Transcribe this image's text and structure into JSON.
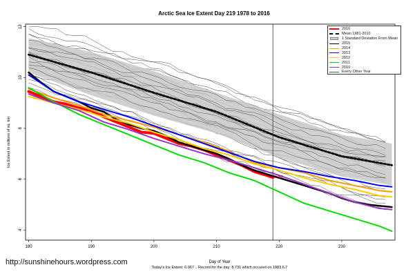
{
  "chart_data": {
    "type": "line",
    "title": "Arctic Sea Ice Extent Day 219 1978 to 2016",
    "xlabel": "Day of Year",
    "ylabel": "Ice Extent in millions of sq. km",
    "xlim": [
      179.5,
      238.5
    ],
    "ylim": [
      3.6,
      12.1
    ],
    "x_ticks": [
      180,
      190,
      200,
      210,
      220,
      230
    ],
    "y_ticks": [
      4,
      6,
      8,
      10,
      12
    ],
    "vline_day": 219,
    "point_label": "6.067",
    "legend_position": "top-right",
    "footer": "Today's Ice Extent: 6.067 .. Record for the day: 8.731 which occured on 1983.6.7",
    "mean_band": {
      "x": [
        180,
        190,
        200,
        210,
        220,
        230,
        238
      ],
      "mean": [
        10.9,
        10.2,
        9.4,
        8.65,
        7.65,
        6.9,
        6.55
      ],
      "lower": [
        10.2,
        9.3,
        8.5,
        7.8,
        6.85,
        6.1,
        5.75
      ],
      "upper": [
        11.55,
        11.0,
        10.25,
        9.4,
        8.55,
        7.75,
        7.4
      ]
    },
    "background_years": {
      "x": [
        180,
        190,
        200,
        210,
        220,
        230,
        238
      ],
      "top": [
        12.0,
        11.4,
        10.7,
        9.85,
        8.9,
        8.1,
        7.6
      ],
      "bottom": [
        9.6,
        8.9,
        7.95,
        7.0,
        6.1,
        5.3,
        4.85
      ],
      "count": 19
    },
    "series": [
      {
        "name": "2016",
        "color": "#ff0000",
        "width": 4,
        "x": [
          180,
          182,
          184,
          186,
          188,
          190,
          192,
          194,
          196,
          198,
          200,
          202,
          204,
          206,
          208,
          210,
          212,
          214,
          216,
          218,
          219
        ],
        "y": [
          9.45,
          9.25,
          9.05,
          8.95,
          8.8,
          8.7,
          8.45,
          8.25,
          8.05,
          7.85,
          7.8,
          7.6,
          7.4,
          7.3,
          7.15,
          6.95,
          6.75,
          6.55,
          6.3,
          6.15,
          6.067
        ]
      },
      {
        "name": "Mean 1981-2010",
        "color": "#111111",
        "dash": true,
        "width": 3,
        "x": [
          180,
          190,
          200,
          210,
          220,
          230,
          238
        ],
        "y": [
          10.9,
          10.2,
          9.4,
          8.65,
          7.65,
          6.9,
          6.55
        ]
      },
      {
        "name": "2015",
        "color": "#000000",
        "width": 2.5,
        "x": [
          180,
          182,
          184,
          186,
          188,
          190,
          192,
          194,
          196,
          198,
          200,
          202,
          204,
          206,
          208,
          210,
          212,
          214,
          216,
          218,
          220,
          222,
          224,
          226,
          228,
          230,
          232,
          234,
          236,
          238
        ],
        "y": [
          10.2,
          9.8,
          9.45,
          9.25,
          9.05,
          8.8,
          8.65,
          8.35,
          8.15,
          8.0,
          7.9,
          7.7,
          7.45,
          7.3,
          7.15,
          7.0,
          6.8,
          6.55,
          6.35,
          6.2,
          6.05,
          5.9,
          5.75,
          5.6,
          5.45,
          5.25,
          5.1,
          5.0,
          4.95,
          4.9
        ]
      },
      {
        "name": "2014",
        "color": "#ff9900",
        "width": 2,
        "x": [
          180,
          184,
          188,
          192,
          196,
          200,
          204,
          208,
          212,
          216,
          220,
          224,
          228,
          232,
          236,
          238
        ],
        "y": [
          9.55,
          9.2,
          8.9,
          8.55,
          8.3,
          8.05,
          7.75,
          7.45,
          7.1,
          6.65,
          6.45,
          6.25,
          5.95,
          5.75,
          5.55,
          5.5
        ]
      },
      {
        "name": "2013",
        "color": "#0000ff",
        "width": 2,
        "x": [
          180,
          184,
          188,
          192,
          196,
          200,
          204,
          208,
          212,
          216,
          220,
          224,
          228,
          232,
          236,
          238
        ],
        "y": [
          10.1,
          9.45,
          9.05,
          8.75,
          8.45,
          8.1,
          7.75,
          7.4,
          7.05,
          6.7,
          6.45,
          6.3,
          6.1,
          5.95,
          5.75,
          5.7
        ]
      },
      {
        "name": "2012",
        "color": "#ffcc00",
        "width": 2,
        "x": [
          180,
          184,
          188,
          192,
          196,
          200,
          204,
          208,
          212,
          216,
          220,
          224,
          228,
          232,
          236,
          238
        ],
        "y": [
          9.25,
          9.0,
          8.75,
          8.45,
          8.2,
          7.85,
          7.55,
          7.2,
          6.95,
          6.6,
          6.35,
          6.05,
          5.8,
          5.6,
          5.35,
          5.3
        ]
      },
      {
        "name": "2011",
        "color": "#00dd00",
        "width": 2,
        "x": [
          180,
          184,
          188,
          192,
          196,
          200,
          204,
          208,
          212,
          216,
          220,
          224,
          228,
          232,
          236,
          238
        ],
        "y": [
          9.6,
          9.05,
          8.55,
          8.15,
          7.75,
          7.35,
          6.95,
          6.65,
          6.25,
          5.95,
          5.5,
          5.05,
          4.75,
          4.45,
          4.15,
          3.95
        ]
      },
      {
        "name": "2010",
        "color": "#9933cc",
        "width": 2,
        "x": [
          180,
          184,
          188,
          192,
          196,
          200,
          204,
          208,
          212,
          216,
          220,
          224,
          228,
          232,
          236,
          238
        ],
        "y": [
          9.35,
          9.0,
          8.7,
          8.25,
          7.95,
          7.6,
          7.3,
          7.0,
          6.75,
          6.45,
          6.15,
          5.8,
          5.45,
          5.1,
          4.85,
          4.8
        ]
      },
      {
        "name": "Every Other Year",
        "color": "#555555",
        "width": 0.6,
        "legend_only": true
      }
    ]
  },
  "watermark": "http://sunshinehours.wordpress.com",
  "legend": {
    "items": [
      {
        "label": "2016",
        "color": "#ff0000",
        "style": "line",
        "width": 4
      },
      {
        "label": "Mean 1981-2010",
        "color": "#111111",
        "style": "dash",
        "width": 3
      },
      {
        "label": "1 Standard Deviation From Mean",
        "color": "#cfcfcf",
        "style": "box"
      },
      {
        "label": "2015",
        "color": "#000000",
        "style": "line",
        "width": 2.5
      },
      {
        "label": "2014",
        "color": "#ff9900",
        "style": "line",
        "width": 2
      },
      {
        "label": "2013",
        "color": "#0000ff",
        "style": "line",
        "width": 2
      },
      {
        "label": "2012",
        "color": "#ffcc00",
        "style": "line",
        "width": 2
      },
      {
        "label": "2011",
        "color": "#00dd00",
        "style": "line",
        "width": 2
      },
      {
        "label": "2010",
        "color": "#9933cc",
        "style": "line",
        "width": 2
      },
      {
        "label": "Every Other Year",
        "color": "#555555",
        "style": "line",
        "width": 1
      }
    ]
  }
}
